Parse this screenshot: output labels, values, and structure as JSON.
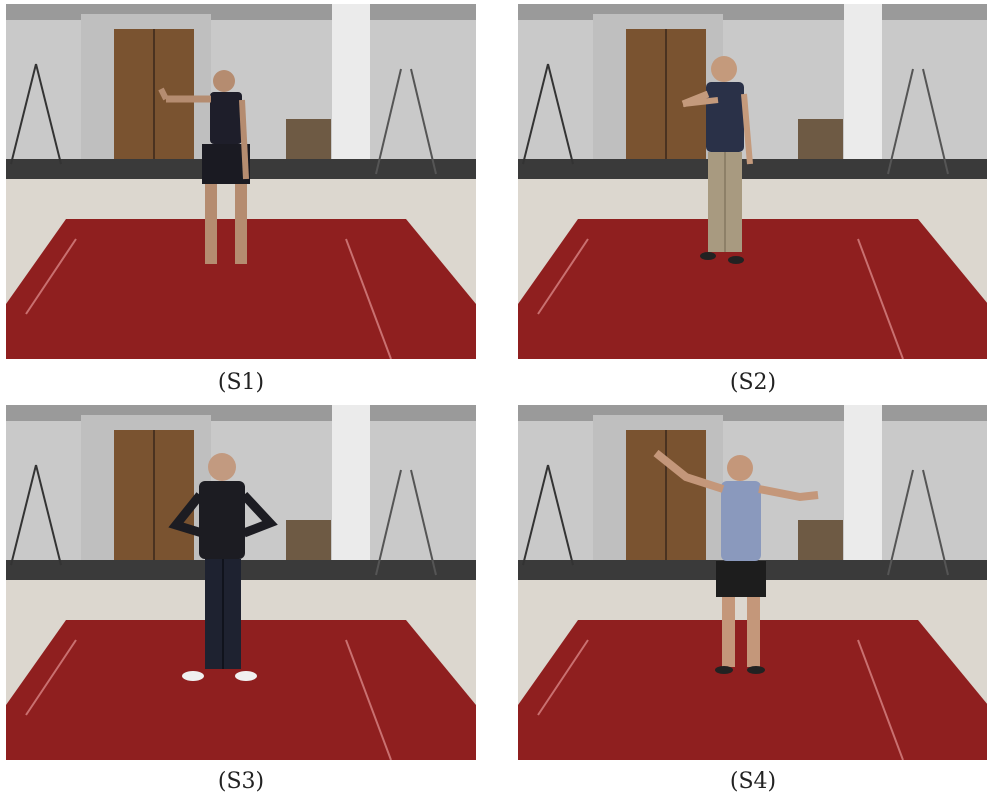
{
  "panels": [
    {
      "caption": "(S1)",
      "subject": "woman in dark top and shorts, right arm raised with wrist marker"
    },
    {
      "caption": "(S2)",
      "subject": "man in dark shirt and khaki pants, arm bent at chest"
    },
    {
      "caption": "(S3)",
      "subject": "man in black jacket and jeans, hands on hips"
    },
    {
      "caption": "(S4)",
      "subject": "man in light blue sleeveless shirt and black shorts, arms outstretched"
    }
  ],
  "colors": {
    "wall": "#c9c9c9",
    "door": "#7a5330",
    "floor": "#dcd7cf",
    "carpet": "#8f1f1f",
    "baseboard": "#3a3a3a"
  }
}
